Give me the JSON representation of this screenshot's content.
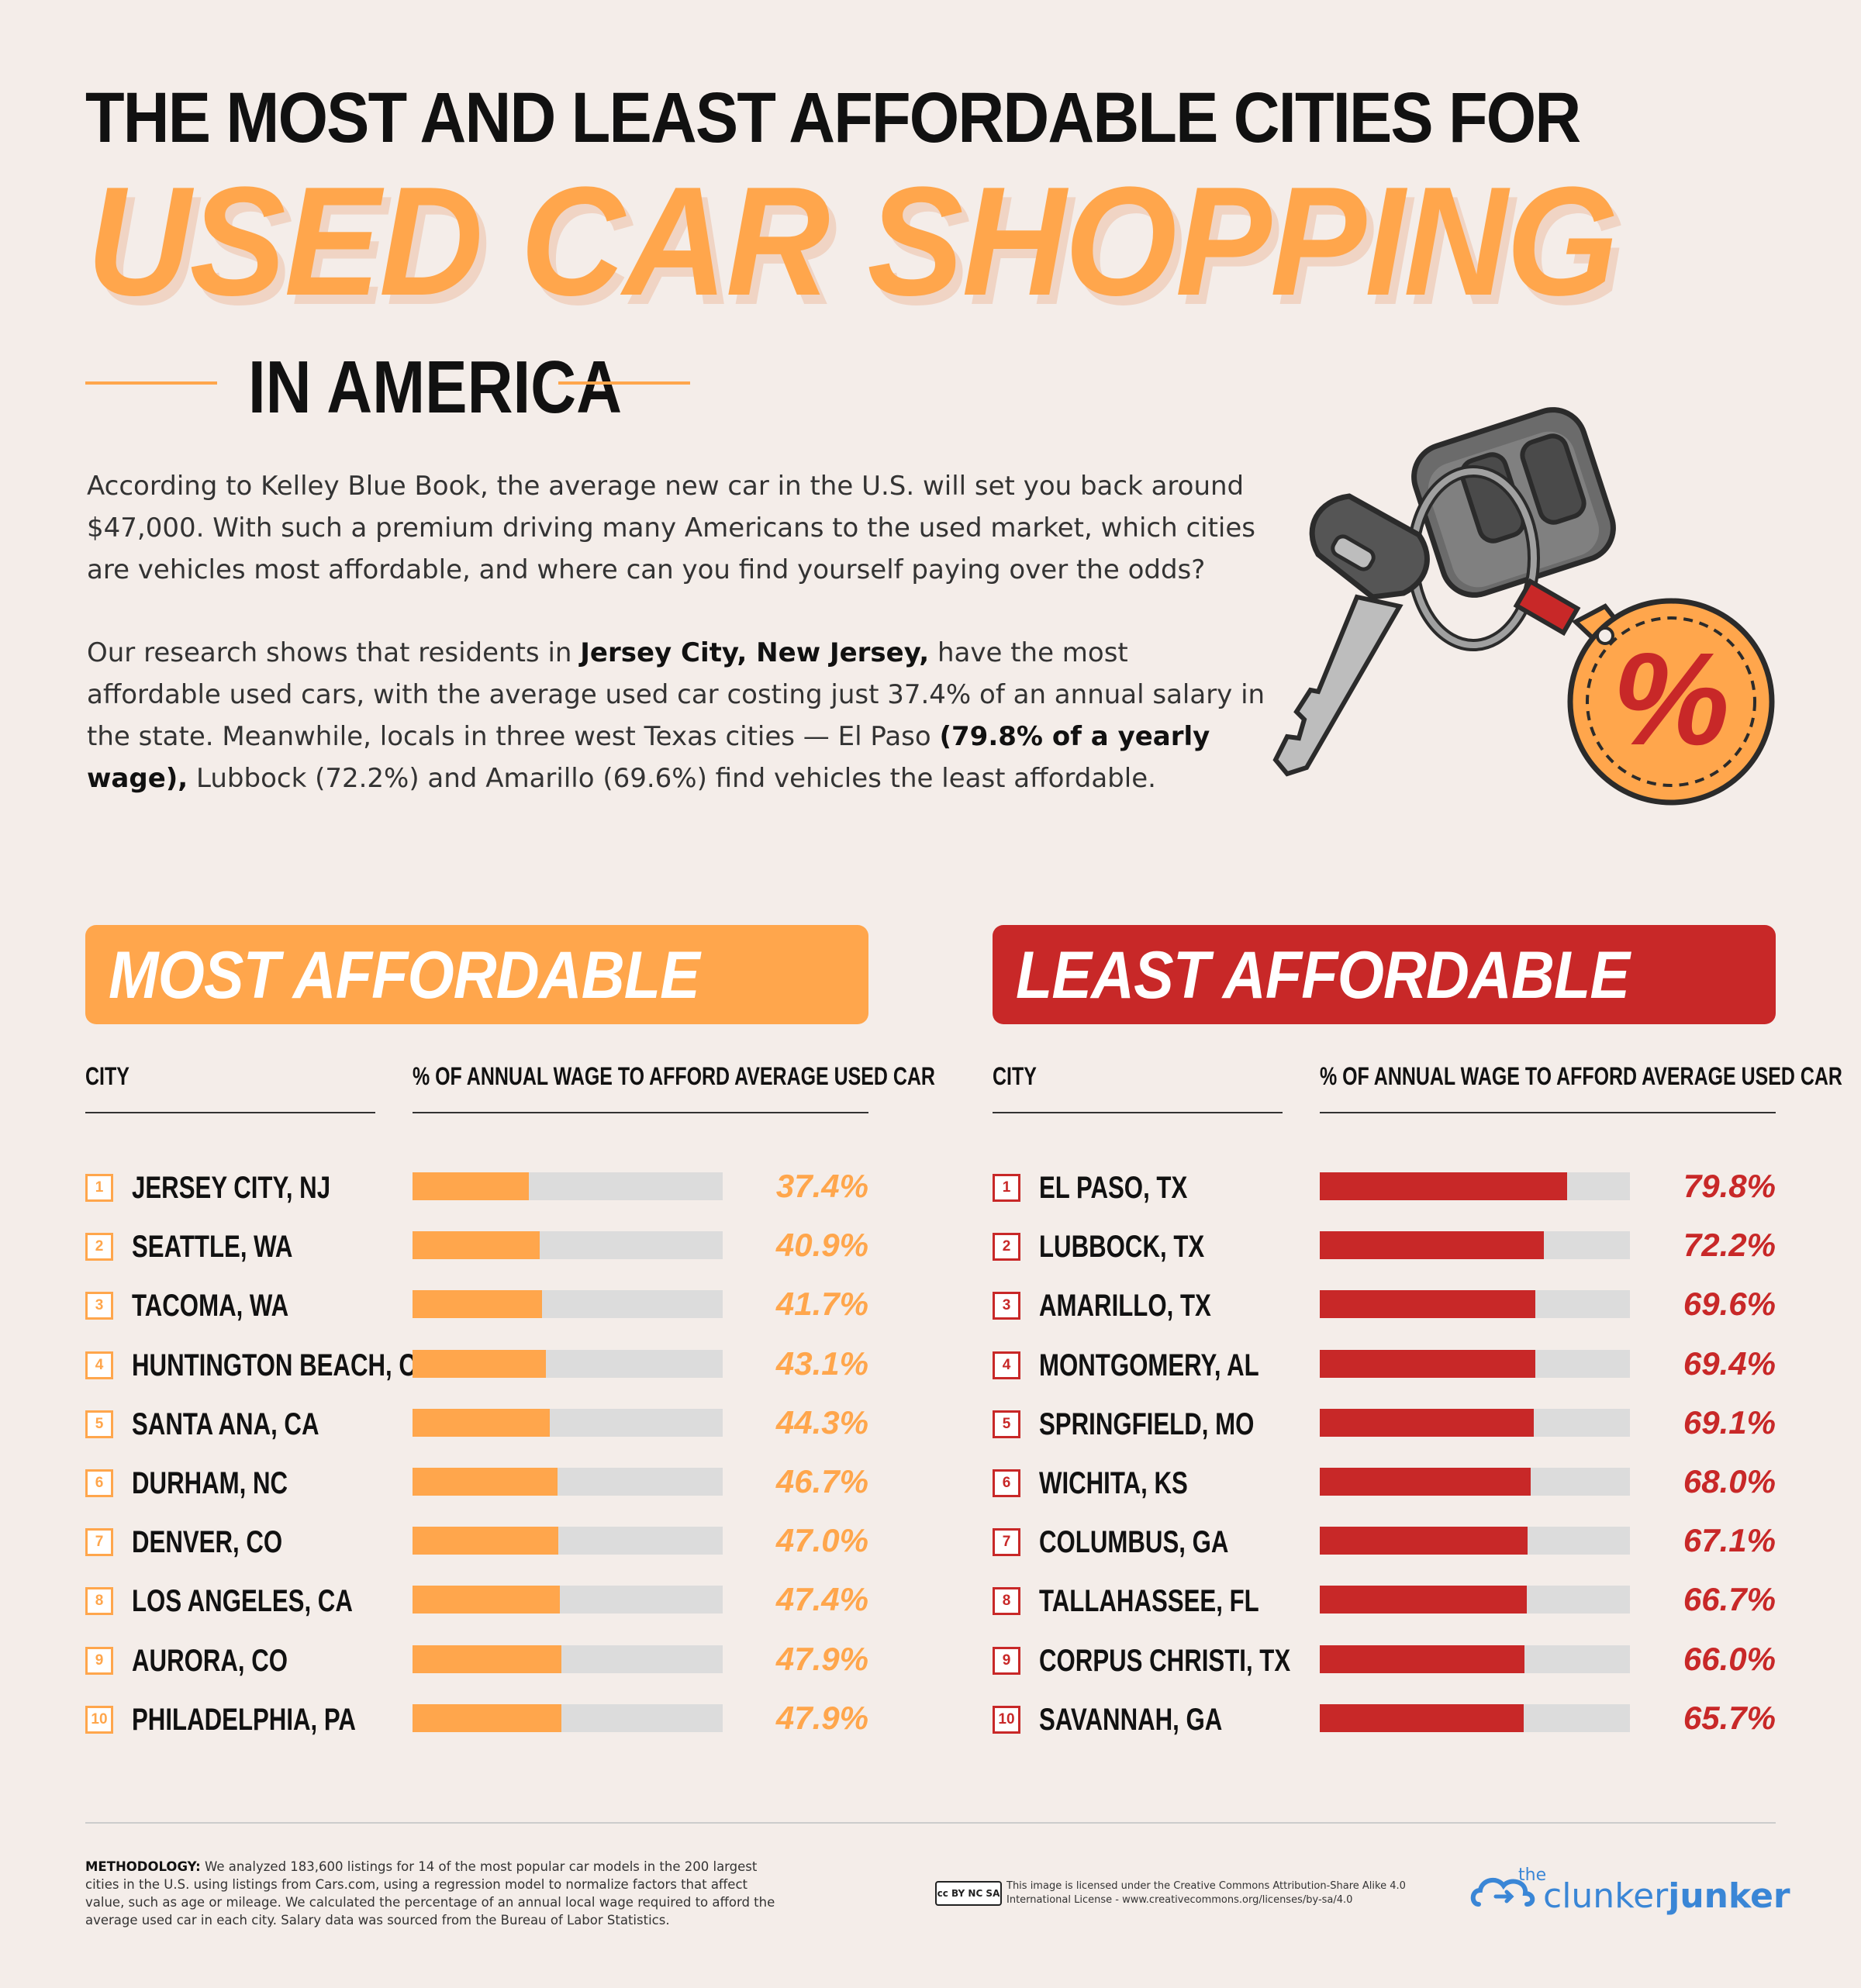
{
  "title": {
    "line1": "THE MOST AND LEAST AFFORDABLE CITIES FOR",
    "line2": "USED CAR SHOPPING",
    "line3": "IN AMERICA"
  },
  "intro": {
    "p1": "According to Kelley Blue Book, the average new car in the U.S. will set you back around $47,000. With such a premium driving many Americans to the used market, which cities are vehicles most affordable, and where can you find yourself paying over the odds?",
    "p2_a": "Our research shows that residents in ",
    "p2_b": "Jersey City, New Jersey,",
    "p2_c": " have the most affordable used cars, with the average used car costing just 37.4% of an annual salary in the state. Meanwhile, locals in three west Texas cities — El Paso ",
    "p2_d": "(79.8% of a yearly wage),",
    "p2_e": " Lubbock (72.2%) and Amarillo (69.6%) find vehicles the least affordable."
  },
  "illustration": {
    "tag_symbol": "%"
  },
  "colors": {
    "orange": "#ffa64c",
    "red": "#c82828",
    "track": "#dcdcdc",
    "background": "#f4ede9"
  },
  "chart_data": [
    {
      "type": "bar",
      "title": "MOST AFFORDABLE",
      "xlabel": "CITY",
      "ylabel": "% OF ANNUAL WAGE TO AFFORD AVERAGE USED CAR",
      "ylim": [
        0,
        100
      ],
      "ranks": [
        "1",
        "2",
        "3",
        "4",
        "5",
        "6",
        "7",
        "8",
        "9",
        "10"
      ],
      "categories": [
        "JERSEY CITY, NJ",
        "SEATTLE, WA",
        "TACOMA, WA",
        "HUNTINGTON BEACH, CA",
        "SANTA ANA, CA",
        "DURHAM, NC",
        "DENVER, CO",
        "LOS ANGELES, CA",
        "AURORA, CO",
        "PHILADELPHIA, PA"
      ],
      "values": [
        37.4,
        40.9,
        41.7,
        43.1,
        44.3,
        46.7,
        47.0,
        47.4,
        47.9,
        47.9
      ],
      "labels": [
        "37.4%",
        "40.9%",
        "41.7%",
        "43.1%",
        "44.3%",
        "46.7%",
        "47.0%",
        "47.4%",
        "47.9%",
        "47.9%"
      ]
    },
    {
      "type": "bar",
      "title": "LEAST AFFORDABLE",
      "xlabel": "CITY",
      "ylabel": "% OF ANNUAL WAGE TO AFFORD AVERAGE USED CAR",
      "ylim": [
        0,
        100
      ],
      "ranks": [
        "1",
        "2",
        "3",
        "4",
        "5",
        "6",
        "7",
        "8",
        "9",
        "10"
      ],
      "categories": [
        "EL PASO, TX",
        "LUBBOCK, TX",
        "AMARILLO, TX",
        "MONTGOMERY, AL",
        "SPRINGFIELD, MO",
        "WICHITA, KS",
        "COLUMBUS, GA",
        "TALLAHASSEE, FL",
        "CORPUS CHRISTI, TX",
        "SAVANNAH, GA"
      ],
      "values": [
        79.8,
        72.2,
        69.6,
        69.4,
        69.1,
        68.0,
        67.1,
        66.7,
        66.0,
        65.7
      ],
      "labels": [
        "79.8%",
        "72.2%",
        "69.6%",
        "69.4%",
        "69.1%",
        "68.0%",
        "67.1%",
        "66.7%",
        "66.0%",
        "65.7%"
      ]
    }
  ],
  "footer": {
    "methodology_label": "METHODOLOGY:",
    "methodology_text": " We analyzed 183,600 listings for 14 of the most popular car models in the 200 largest cities in the U.S. using listings from Cars.com, using a regression model to normalize factors that affect value, such as age or mileage. We calculated the percentage of an annual local wage required to afford the average used car in each city. Salary data was sourced from the Bureau of Labor Statistics.",
    "cc_badge": "cc BY NC SA",
    "license_text": "This image is licensed under the Creative Commons  Attribution-Share Alike 4.0 International License - www.creativecommons.org/licenses/by-sa/4.0",
    "logo_the": "the",
    "logo_light": "clunker",
    "logo_bold": "junker"
  }
}
